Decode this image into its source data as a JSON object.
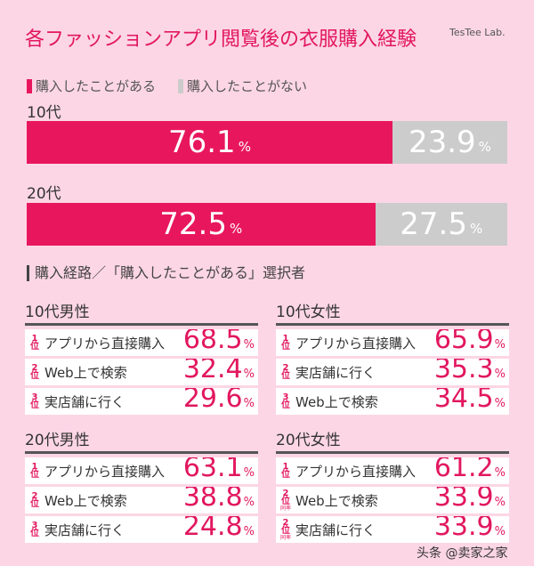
{
  "title": "各ファッションアプリ閲覧後の衣服購入経験",
  "logo": "TesTee Lab.",
  "colors": {
    "yes": "#e8175d",
    "no": "#cccccc",
    "background": "#fcd6e4"
  },
  "chart_data": {
    "type": "bar",
    "stacked": true,
    "orientation": "horizontal",
    "legend": [
      "購入したことがある",
      "購入したことがない"
    ],
    "categories": [
      "10代",
      "20代"
    ],
    "series": [
      {
        "name": "購入したことがある",
        "values": [
          76.1,
          72.5
        ]
      },
      {
        "name": "購入したことがない",
        "values": [
          23.9,
          27.5
        ]
      }
    ],
    "unit": "%"
  },
  "section_title": "購入経路／「購入したことがある」選択者",
  "rank_suffix": "位",
  "tie_label": "同率",
  "unit": "%",
  "panels": [
    {
      "title": "10代男性",
      "rows": [
        {
          "rank": "1",
          "label": "アプリから直接購入",
          "value": "68.5"
        },
        {
          "rank": "2",
          "label": "Web上で検索",
          "value": "32.4"
        },
        {
          "rank": "3",
          "label": "実店舗に行く",
          "value": "29.6"
        }
      ]
    },
    {
      "title": "10代女性",
      "rows": [
        {
          "rank": "1",
          "label": "アプリから直接購入",
          "value": "65.9"
        },
        {
          "rank": "2",
          "label": "実店舗に行く",
          "value": "35.3"
        },
        {
          "rank": "3",
          "label": "Web上で検索",
          "value": "34.5"
        }
      ]
    },
    {
      "title": "20代男性",
      "rows": [
        {
          "rank": "1",
          "label": "アプリから直接購入",
          "value": "63.1"
        },
        {
          "rank": "2",
          "label": "Web上で検索",
          "value": "38.8"
        },
        {
          "rank": "3",
          "label": "実店舗に行く",
          "value": "24.8"
        }
      ]
    },
    {
      "title": "20代女性",
      "rows": [
        {
          "rank": "1",
          "label": "アプリから直接購入",
          "value": "61.2"
        },
        {
          "rank": "2",
          "label": "Web上で検索",
          "value": "33.9",
          "tie": true
        },
        {
          "rank": "2",
          "label": "実店舗に行く",
          "value": "33.9",
          "tie": true
        }
      ]
    }
  ],
  "watermark": "头条 @卖家之家"
}
